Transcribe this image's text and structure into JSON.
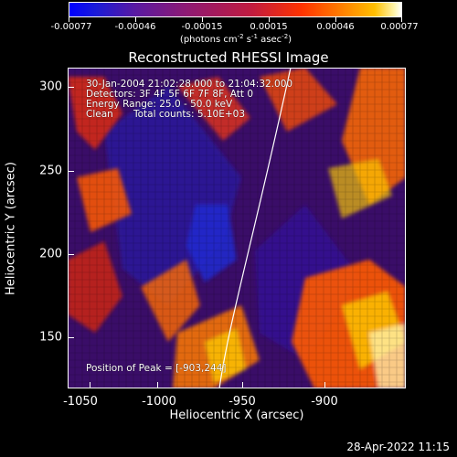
{
  "colorbar": {
    "tick_labels": [
      "-0.00077",
      "-0.00046",
      "-0.00015",
      "0.00015",
      "0.00046",
      "0.00077"
    ],
    "units_parts": [
      "(photons cm",
      "-2",
      " s",
      "-1",
      " asec",
      "-2",
      ")"
    ]
  },
  "plot": {
    "title": "Reconstructed RHESSI Image",
    "x_axis_title": "Heliocentric X (arcsec)",
    "y_axis_title": "Heliocentric Y (arcsec)",
    "x_tick_labels": [
      "-1050",
      "-1000",
      "-950",
      "-900"
    ],
    "y_tick_labels": [
      "300",
      "250",
      "200",
      "150"
    ]
  },
  "annotations": {
    "time_range": "30-Jan-2004 21:02:28.000 to 21:04:32.000",
    "detectors": "Detectors: 3F 4F 5F 6F 7F 8F, Att 0",
    "energy_range": "Energy Range: 25.0 - 50.0 keV",
    "method": "Clean",
    "total_counts": "Total counts: 5.10E+03",
    "peak_position": "Position of Peak = [-903,244]"
  },
  "footer": {
    "timestamp": "28-Apr-2022 11:15"
  },
  "colors": {
    "background": "#000000",
    "frame": "#ffffff",
    "limb_line": "#ffffff"
  }
}
